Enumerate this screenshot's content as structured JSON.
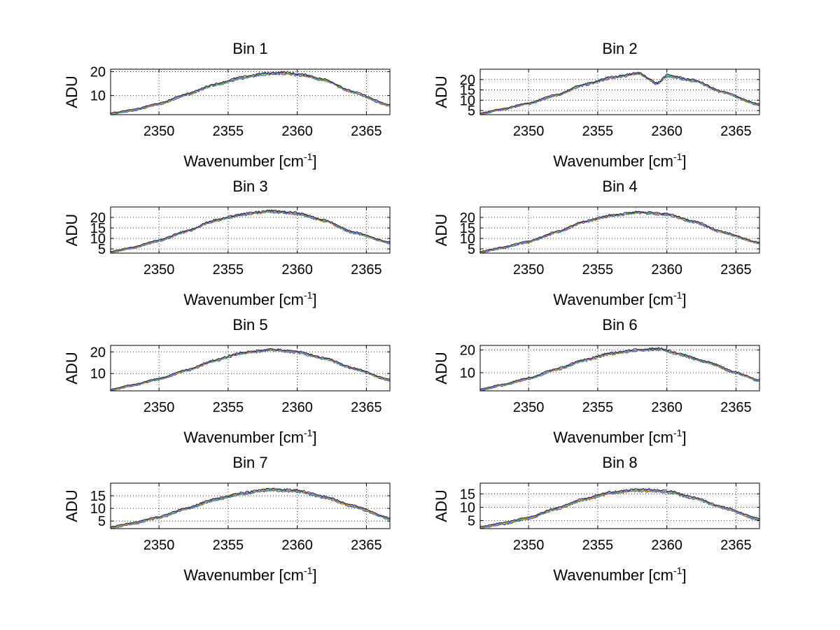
{
  "figure": {
    "xlabel_main": "Wavenumber [cm",
    "xlabel_sup": "-1",
    "xlabel_close": "]",
    "ylabel": "ADU",
    "series_colors": [
      "#0000ff",
      "#00aa55",
      "#ff6600",
      "#cc9900",
      "#00bcd4",
      "#b04de0",
      "#000000"
    ]
  },
  "chart_data": [
    {
      "type": "line",
      "title": "Bin 1",
      "xlabel": "Wavenumber [cm-1]",
      "ylabel": "ADU",
      "xlim": [
        2346.5,
        2366.7
      ],
      "ylim": [
        2,
        21
      ],
      "xticks": [
        2350,
        2355,
        2360,
        2365
      ],
      "yticks": [
        10,
        20
      ],
      "grid": true,
      "x": [
        2346.5,
        2348,
        2350,
        2352,
        2354,
        2356,
        2357.5,
        2359,
        2360.5,
        2362,
        2364,
        2366.7
      ],
      "y": [
        2.5,
        3.8,
        6.5,
        10.5,
        14.5,
        17.5,
        19.0,
        19.5,
        18.5,
        16.5,
        11.5,
        5.8
      ]
    },
    {
      "type": "line",
      "title": "Bin 2",
      "xlabel": "Wavenumber [cm-1]",
      "ylabel": "ADU",
      "xlim": [
        2346.5,
        2366.7
      ],
      "ylim": [
        3,
        25
      ],
      "xticks": [
        2350,
        2355,
        2360,
        2365
      ],
      "yticks": [
        5,
        10,
        15,
        20
      ],
      "grid": true,
      "x": [
        2346.5,
        2348,
        2350,
        2352,
        2354,
        2356,
        2358,
        2359.3,
        2360,
        2362,
        2364,
        2366.7
      ],
      "y": [
        3.5,
        5.5,
        8.5,
        12.5,
        17.5,
        21.0,
        23.0,
        18.0,
        22.0,
        19.5,
        14.0,
        7.8
      ]
    },
    {
      "type": "line",
      "title": "Bin 3",
      "xlabel": "Wavenumber [cm-1]",
      "ylabel": "ADU",
      "xlim": [
        2346.5,
        2366.7
      ],
      "ylim": [
        3,
        25
      ],
      "xticks": [
        2350,
        2355,
        2360,
        2365
      ],
      "yticks": [
        5,
        10,
        15,
        20
      ],
      "grid": true,
      "x": [
        2346.5,
        2348,
        2350,
        2352,
        2354,
        2356,
        2358,
        2360,
        2362,
        2364,
        2366.7
      ],
      "y": [
        3.5,
        5.5,
        9.0,
        13.5,
        18.5,
        21.5,
        23.0,
        22.0,
        18.5,
        13.0,
        8.0
      ]
    },
    {
      "type": "line",
      "title": "Bin 4",
      "xlabel": "Wavenumber [cm-1]",
      "ylabel": "ADU",
      "xlim": [
        2346.5,
        2366.7
      ],
      "ylim": [
        3,
        25
      ],
      "xticks": [
        2350,
        2355,
        2360,
        2365
      ],
      "yticks": [
        5,
        10,
        15,
        20
      ],
      "grid": true,
      "x": [
        2346.5,
        2348,
        2350,
        2352,
        2354,
        2356,
        2358,
        2360,
        2362,
        2364,
        2366.7
      ],
      "y": [
        3.5,
        5.5,
        8.5,
        13.0,
        18.0,
        21.0,
        22.5,
        21.5,
        18.0,
        13.0,
        7.8
      ]
    },
    {
      "type": "line",
      "title": "Bin 5",
      "xlabel": "Wavenumber [cm-1]",
      "ylabel": "ADU",
      "xlim": [
        2346.5,
        2366.7
      ],
      "ylim": [
        2,
        23
      ],
      "xticks": [
        2350,
        2355,
        2360,
        2365
      ],
      "yticks": [
        10,
        20
      ],
      "grid": true,
      "x": [
        2346.5,
        2348,
        2350,
        2352,
        2354,
        2356,
        2358,
        2360,
        2362,
        2364,
        2366.7
      ],
      "y": [
        2.5,
        4.5,
        7.5,
        11.5,
        16.0,
        19.5,
        21.0,
        20.0,
        17.0,
        12.5,
        7.0
      ]
    },
    {
      "type": "line",
      "title": "Bin 6",
      "xlabel": "Wavenumber [cm-1]",
      "ylabel": "ADU",
      "xlim": [
        2346.5,
        2366.7
      ],
      "ylim": [
        2,
        22
      ],
      "xticks": [
        2350,
        2355,
        2360,
        2365
      ],
      "yticks": [
        10,
        20
      ],
      "grid": true,
      "x": [
        2346.5,
        2348,
        2350,
        2352,
        2354,
        2356,
        2358,
        2359.5,
        2361,
        2363,
        2365,
        2366.7
      ],
      "y": [
        2.5,
        4.5,
        7.5,
        11.5,
        15.5,
        18.5,
        20.0,
        20.5,
        18.0,
        14.5,
        10.0,
        6.5
      ]
    },
    {
      "type": "line",
      "title": "Bin 7",
      "xlabel": "Wavenumber [cm-1]",
      "ylabel": "ADU",
      "xlim": [
        2346.5,
        2366.7
      ],
      "ylim": [
        2,
        20
      ],
      "xticks": [
        2350,
        2355,
        2360,
        2365
      ],
      "yticks": [
        5,
        10,
        15
      ],
      "grid": true,
      "x": [
        2346.5,
        2348,
        2350,
        2352,
        2354,
        2356,
        2358,
        2360,
        2362,
        2364,
        2366.7
      ],
      "y": [
        2.5,
        4.0,
        6.5,
        10.0,
        13.5,
        16.0,
        17.5,
        17.0,
        14.5,
        11.0,
        6.0
      ]
    },
    {
      "type": "line",
      "title": "Bin 8",
      "xlabel": "Wavenumber [cm-1]",
      "ylabel": "ADU",
      "xlim": [
        2346.5,
        2366.7
      ],
      "ylim": [
        2,
        19
      ],
      "xticks": [
        2350,
        2355,
        2360,
        2365
      ],
      "yticks": [
        5,
        10,
        15
      ],
      "grid": true,
      "x": [
        2346.5,
        2348,
        2350,
        2352,
        2354,
        2356,
        2358,
        2360,
        2362,
        2364,
        2366.7
      ],
      "y": [
        2.5,
        3.8,
        6.0,
        9.5,
        13.0,
        15.5,
        16.5,
        16.0,
        13.5,
        10.0,
        5.5
      ]
    }
  ]
}
